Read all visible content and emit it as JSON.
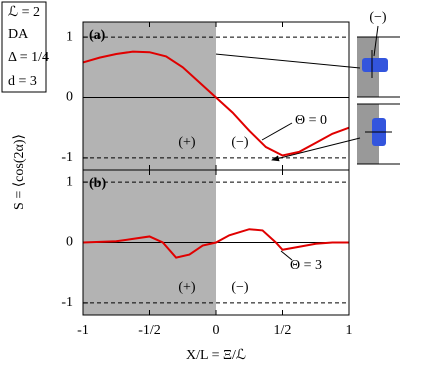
{
  "legend_box": [
    "ℒ = 2",
    "DA",
    "Δ = 1/4",
    "d = 3"
  ],
  "y_label": "S = ⟨cos(2α)⟩",
  "x_label": "X/L = Ξ/ℒ",
  "inset_label": "(−)",
  "chart_data": [
    {
      "type": "line",
      "panel_label": "(a)",
      "shaded_x": [
        -1,
        0
      ],
      "x": [
        -1,
        -0.875,
        -0.75,
        -0.625,
        -0.5,
        -0.375,
        -0.25,
        -0.125,
        0,
        0.125,
        0.25,
        0.375,
        0.5,
        0.625,
        0.75,
        0.875,
        1
      ],
      "series": [
        {
          "color": "#e00000",
          "values": [
            0.58,
            0.66,
            0.72,
            0.76,
            0.75,
            0.68,
            0.5,
            0.25,
            0,
            -0.25,
            -0.55,
            -0.82,
            -0.96,
            -0.9,
            -0.75,
            -0.6,
            -0.5
          ]
        }
      ],
      "annotations": [
        "(+)",
        "(−)",
        "Θ = 0"
      ],
      "xlim": [
        -1,
        1
      ],
      "ylim": [
        -1.2,
        1.25
      ],
      "yticks": [
        1,
        0,
        -1
      ]
    },
    {
      "type": "line",
      "panel_label": "(b)",
      "shaded_x": [
        -1,
        0
      ],
      "x": [
        -1,
        -0.875,
        -0.75,
        -0.625,
        -0.5,
        -0.4,
        -0.3,
        -0.2,
        -0.1,
        0,
        0.1,
        0.25,
        0.35,
        0.45,
        0.5,
        0.6,
        0.75,
        0.875,
        1
      ],
      "series": [
        {
          "color": "#e00000",
          "values": [
            0,
            0.01,
            0.02,
            0.06,
            0.1,
            0,
            -0.25,
            -0.2,
            -0.05,
            0,
            0.12,
            0.22,
            0.2,
            0,
            -0.12,
            -0.08,
            -0.02,
            0,
            0
          ]
        }
      ],
      "annotations": [
        "(+)",
        "(−)",
        "Θ = 3"
      ],
      "xlim": [
        -1,
        1
      ],
      "ylim": [
        -1.2,
        1.2
      ],
      "yticks": [
        1,
        0,
        -1
      ],
      "xticks": [
        -1,
        {
          "value": -0.5,
          "label": "-1/2"
        },
        0,
        {
          "value": 0.5,
          "label": "1/2"
        },
        1
      ]
    }
  ]
}
